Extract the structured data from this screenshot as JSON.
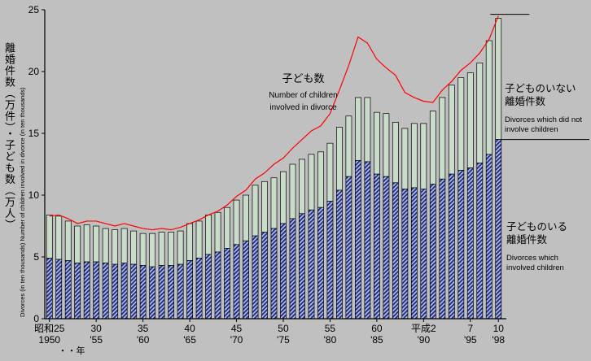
{
  "chart_data": {
    "type": "bar+line",
    "title": "",
    "ylabel_jp": "離婚件数（万件）・子ども数（万人）",
    "ylabel_en": "Divorces (in ten thousands)  Number of children involved in divorce (in ten thousands)",
    "ylim": [
      0,
      25
    ],
    "y_ticks": [
      0,
      5,
      10,
      15,
      20,
      25
    ],
    "grid": false,
    "legend_position": "right-side-annotations",
    "years": [
      1950,
      1951,
      1952,
      1953,
      1954,
      1955,
      1956,
      1957,
      1958,
      1959,
      1960,
      1961,
      1962,
      1963,
      1964,
      1965,
      1966,
      1967,
      1968,
      1969,
      1970,
      1971,
      1972,
      1973,
      1974,
      1975,
      1976,
      1977,
      1978,
      1979,
      1980,
      1981,
      1982,
      1983,
      1984,
      1985,
      1986,
      1987,
      1988,
      1989,
      1990,
      1991,
      1992,
      1993,
      1994,
      1995,
      1996,
      1997,
      1998
    ],
    "series": [
      {
        "name": "divorces_with_children",
        "type": "bar-lower-segment",
        "label_jp": "子どものいる離婚件数",
        "label_en": "Divorces which involved children",
        "values": [
          4.9,
          4.8,
          4.7,
          4.5,
          4.6,
          4.6,
          4.5,
          4.4,
          4.5,
          4.4,
          4.3,
          4.2,
          4.3,
          4.3,
          4.4,
          4.7,
          4.9,
          5.2,
          5.4,
          5.7,
          6.0,
          6.3,
          6.7,
          7.0,
          7.3,
          7.7,
          8.1,
          8.5,
          8.8,
          9.0,
          9.5,
          10.4,
          11.5,
          12.8,
          12.7,
          11.7,
          11.5,
          11.0,
          10.5,
          10.6,
          10.5,
          10.9,
          11.3,
          11.7,
          12.0,
          12.2,
          12.6,
          13.3,
          14.5
        ]
      },
      {
        "name": "divorces_without_children",
        "type": "bar-upper-segment",
        "label_jp": "子どものいない離婚件数",
        "label_en": "Divorces which did not involve children",
        "values": [
          3.5,
          3.5,
          3.2,
          3.0,
          3.0,
          2.9,
          2.8,
          2.8,
          2.8,
          2.7,
          2.6,
          2.7,
          2.7,
          2.7,
          2.7,
          3.0,
          3.0,
          3.2,
          3.2,
          3.3,
          3.6,
          3.7,
          4.1,
          4.1,
          4.1,
          4.2,
          4.4,
          4.4,
          4.5,
          4.5,
          4.7,
          5.1,
          4.9,
          5.1,
          5.2,
          5.0,
          5.1,
          4.9,
          4.9,
          5.2,
          5.3,
          5.9,
          6.6,
          7.2,
          7.5,
          7.7,
          8.1,
          9.2,
          9.8
        ]
      },
      {
        "name": "children_involved",
        "type": "line",
        "label_jp": "子ども数",
        "label_en": "Number of children involved in divorce",
        "values": [
          8.3,
          8.4,
          8.1,
          7.7,
          7.9,
          7.9,
          7.7,
          7.5,
          7.7,
          7.5,
          7.3,
          7.2,
          7.3,
          7.2,
          7.4,
          7.7,
          8.0,
          8.4,
          8.7,
          9.2,
          9.9,
          10.4,
          11.3,
          11.8,
          12.5,
          13.0,
          13.8,
          14.5,
          15.2,
          15.6,
          16.6,
          18.5,
          20.5,
          22.8,
          22.3,
          21.0,
          20.3,
          19.7,
          18.3,
          17.9,
          17.6,
          17.5,
          18.5,
          19.2,
          20.1,
          20.7,
          21.5,
          22.6,
          24.5
        ]
      }
    ],
    "x_ticks": [
      {
        "year": 1950,
        "era": "昭和25",
        "west": "1950"
      },
      {
        "year": 1955,
        "era": "30",
        "west": "'55"
      },
      {
        "year": 1960,
        "era": "35",
        "west": "'60"
      },
      {
        "year": 1965,
        "era": "40",
        "west": "'65"
      },
      {
        "year": 1970,
        "era": "45",
        "west": "'70"
      },
      {
        "year": 1975,
        "era": "50",
        "west": "'75"
      },
      {
        "year": 1980,
        "era": "55",
        "west": "'80"
      },
      {
        "year": 1985,
        "era": "60",
        "west": "'85"
      },
      {
        "year": 1990,
        "era": "平成2",
        "west": "'90"
      },
      {
        "year": 1995,
        "era": "7",
        "west": "'95"
      },
      {
        "year": 1998,
        "era": "10",
        "west": "'98"
      }
    ],
    "x_unit_note": "・・年",
    "annotations": {
      "line_label": {
        "jp": "子ども数",
        "en1": "Number of children",
        "en2": "involved in divorce"
      },
      "no_children": {
        "jp1": "子どものいない",
        "jp2": "離婚件数",
        "en1": "Divorces which did not",
        "en2": "involve children"
      },
      "with_children": {
        "jp1": "子どものいる",
        "jp2": "離婚件数",
        "en1": "Divorces which",
        "en2": "involved children"
      }
    },
    "colors": {
      "background": "#c0c0c0",
      "bar_without_children": "#c9dcc9",
      "bar_with_children_hatch": "#1f2d8a",
      "bar_with_children_bg": "#b9c3e3",
      "line": "#ff0000",
      "axis": "#000000"
    }
  }
}
